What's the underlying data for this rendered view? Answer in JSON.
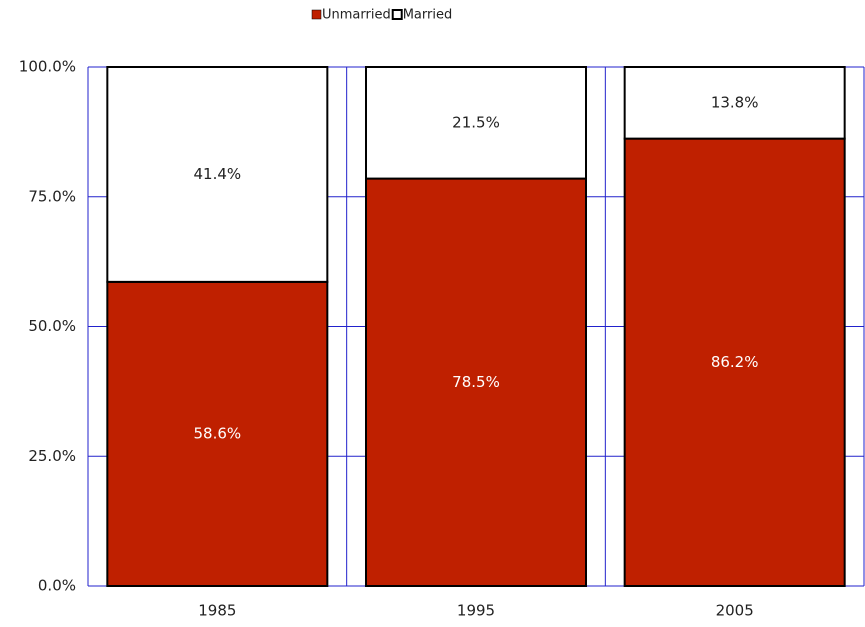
{
  "chart_data": {
    "type": "stacked_bar",
    "categories": [
      "1985",
      "1995",
      "2005"
    ],
    "series": [
      {
        "name": "Unmarried",
        "color": "#bf2000",
        "values": [
          58.6,
          78.5,
          86.2
        ],
        "value_labels": [
          "58.6%",
          "78.5%",
          "86.2%"
        ]
      },
      {
        "name": "Married",
        "color": "#ffffff",
        "values": [
          41.4,
          21.5,
          13.8
        ],
        "value_labels": [
          "41.4%",
          "21.5%",
          "13.8%"
        ]
      }
    ],
    "ylim": [
      0,
      100
    ],
    "yticks": [
      {
        "value": 0,
        "label": "0.0%"
      },
      {
        "value": 25,
        "label": "25.0%"
      },
      {
        "value": 50,
        "label": "50.0%"
      },
      {
        "value": 75,
        "label": "75.0%"
      },
      {
        "value": 100,
        "label": "100.0%"
      }
    ],
    "grid": true,
    "legend": "top"
  }
}
